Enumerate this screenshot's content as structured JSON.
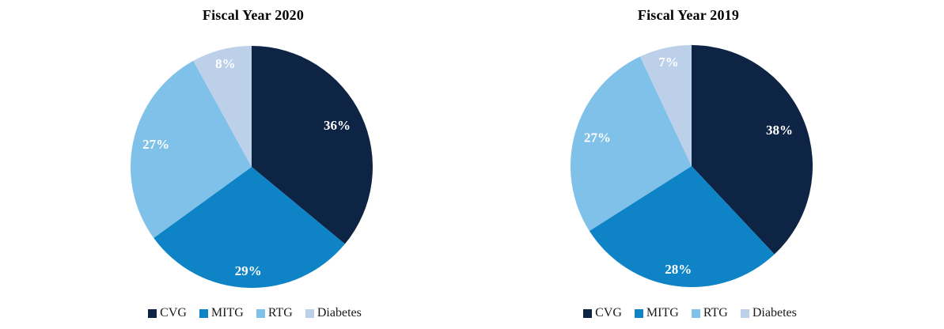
{
  "page": {
    "background_color": "#ffffff"
  },
  "chart_data": [
    {
      "type": "pie",
      "title": "Fiscal Year 2020",
      "categories": [
        "CVG",
        "MITG",
        "RTG",
        "Diabetes"
      ],
      "values": [
        36,
        29,
        27,
        8
      ],
      "labels": [
        "36%",
        "29%",
        "27%",
        "8%"
      ],
      "colors": [
        "#0d2444",
        "#0e84c7",
        "#7fc1e8",
        "#bcd0ea"
      ],
      "label_color": "#ffffff",
      "start_angle_deg": 0,
      "direction": "clockwise",
      "legend_position": "bottom",
      "legend_entries": [
        "CVG",
        "MITG",
        "RTG",
        "Diabetes"
      ]
    },
    {
      "type": "pie",
      "title": "Fiscal Year 2019",
      "categories": [
        "CVG",
        "MITG",
        "RTG",
        "Diabetes"
      ],
      "values": [
        38,
        28,
        27,
        7
      ],
      "labels": [
        "38%",
        "28%",
        "27%",
        "7%"
      ],
      "colors": [
        "#0d2444",
        "#0e84c7",
        "#7fc1e8",
        "#bcd0ea"
      ],
      "label_color": "#ffffff",
      "start_angle_deg": 0,
      "direction": "clockwise",
      "legend_position": "bottom",
      "legend_entries": [
        "CVG",
        "MITG",
        "RTG",
        "Diabetes"
      ]
    }
  ]
}
